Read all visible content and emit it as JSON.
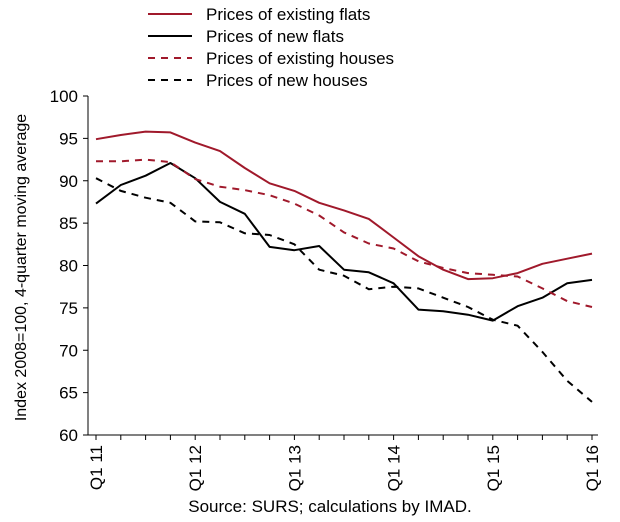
{
  "chart_data": {
    "type": "line",
    "x": [
      "Q1 11",
      "Q2 11",
      "Q3 11",
      "Q4 11",
      "Q1 12",
      "Q2 12",
      "Q3 12",
      "Q4 12",
      "Q1 13",
      "Q2 13",
      "Q3 13",
      "Q4 13",
      "Q1 14",
      "Q2 14",
      "Q3 14",
      "Q4 14",
      "Q1 15",
      "Q2 15",
      "Q3 15",
      "Q4 15",
      "Q1 16"
    ],
    "tick_labels": [
      "Q1 11",
      "Q1 12",
      "Q1 13",
      "Q1 14",
      "Q1 15",
      "Q1 16"
    ],
    "ylabel": "Index 2008=100, 4-quarter moving average",
    "ylim": [
      60,
      100
    ],
    "yticks": [
      60,
      65,
      70,
      75,
      80,
      85,
      90,
      95,
      100
    ],
    "grid": false,
    "legend_position": "top-center",
    "source": "Source: SURS; calculations by IMAD.",
    "series": [
      {
        "name": "Prices of existing flats",
        "color": "#a0192b",
        "style": "solid",
        "values": [
          94.9,
          95.4,
          95.8,
          95.7,
          94.5,
          93.5,
          91.5,
          89.7,
          88.8,
          87.4,
          86.5,
          85.5,
          83.3,
          81.1,
          79.5,
          78.4,
          78.5,
          79.1,
          80.2,
          80.8,
          81.4
        ]
      },
      {
        "name": "Prices of new flats",
        "color": "#000000",
        "style": "solid",
        "values": [
          87.3,
          89.5,
          90.6,
          92.1,
          90.3,
          87.5,
          86.1,
          82.2,
          81.8,
          82.3,
          79.5,
          79.2,
          77.9,
          74.8,
          74.6,
          74.2,
          73.5,
          75.2,
          76.2,
          77.9,
          78.3
        ]
      },
      {
        "name": "Prices of existing houses",
        "color": "#a0192b",
        "style": "dashed",
        "values": [
          92.3,
          92.3,
          92.5,
          92.2,
          90.2,
          89.3,
          88.9,
          88.3,
          87.3,
          85.9,
          83.9,
          82.6,
          82.0,
          80.5,
          79.7,
          79.1,
          78.9,
          78.7,
          77.3,
          75.8,
          75.1
        ]
      },
      {
        "name": "Prices of new houses",
        "color": "#000000",
        "style": "dashed",
        "values": [
          90.3,
          88.8,
          88.0,
          87.4,
          85.2,
          85.1,
          83.8,
          83.6,
          82.5,
          79.5,
          78.8,
          77.2,
          77.5,
          77.3,
          76.2,
          75.1,
          73.6,
          72.9,
          69.8,
          66.4,
          63.9
        ]
      }
    ]
  }
}
